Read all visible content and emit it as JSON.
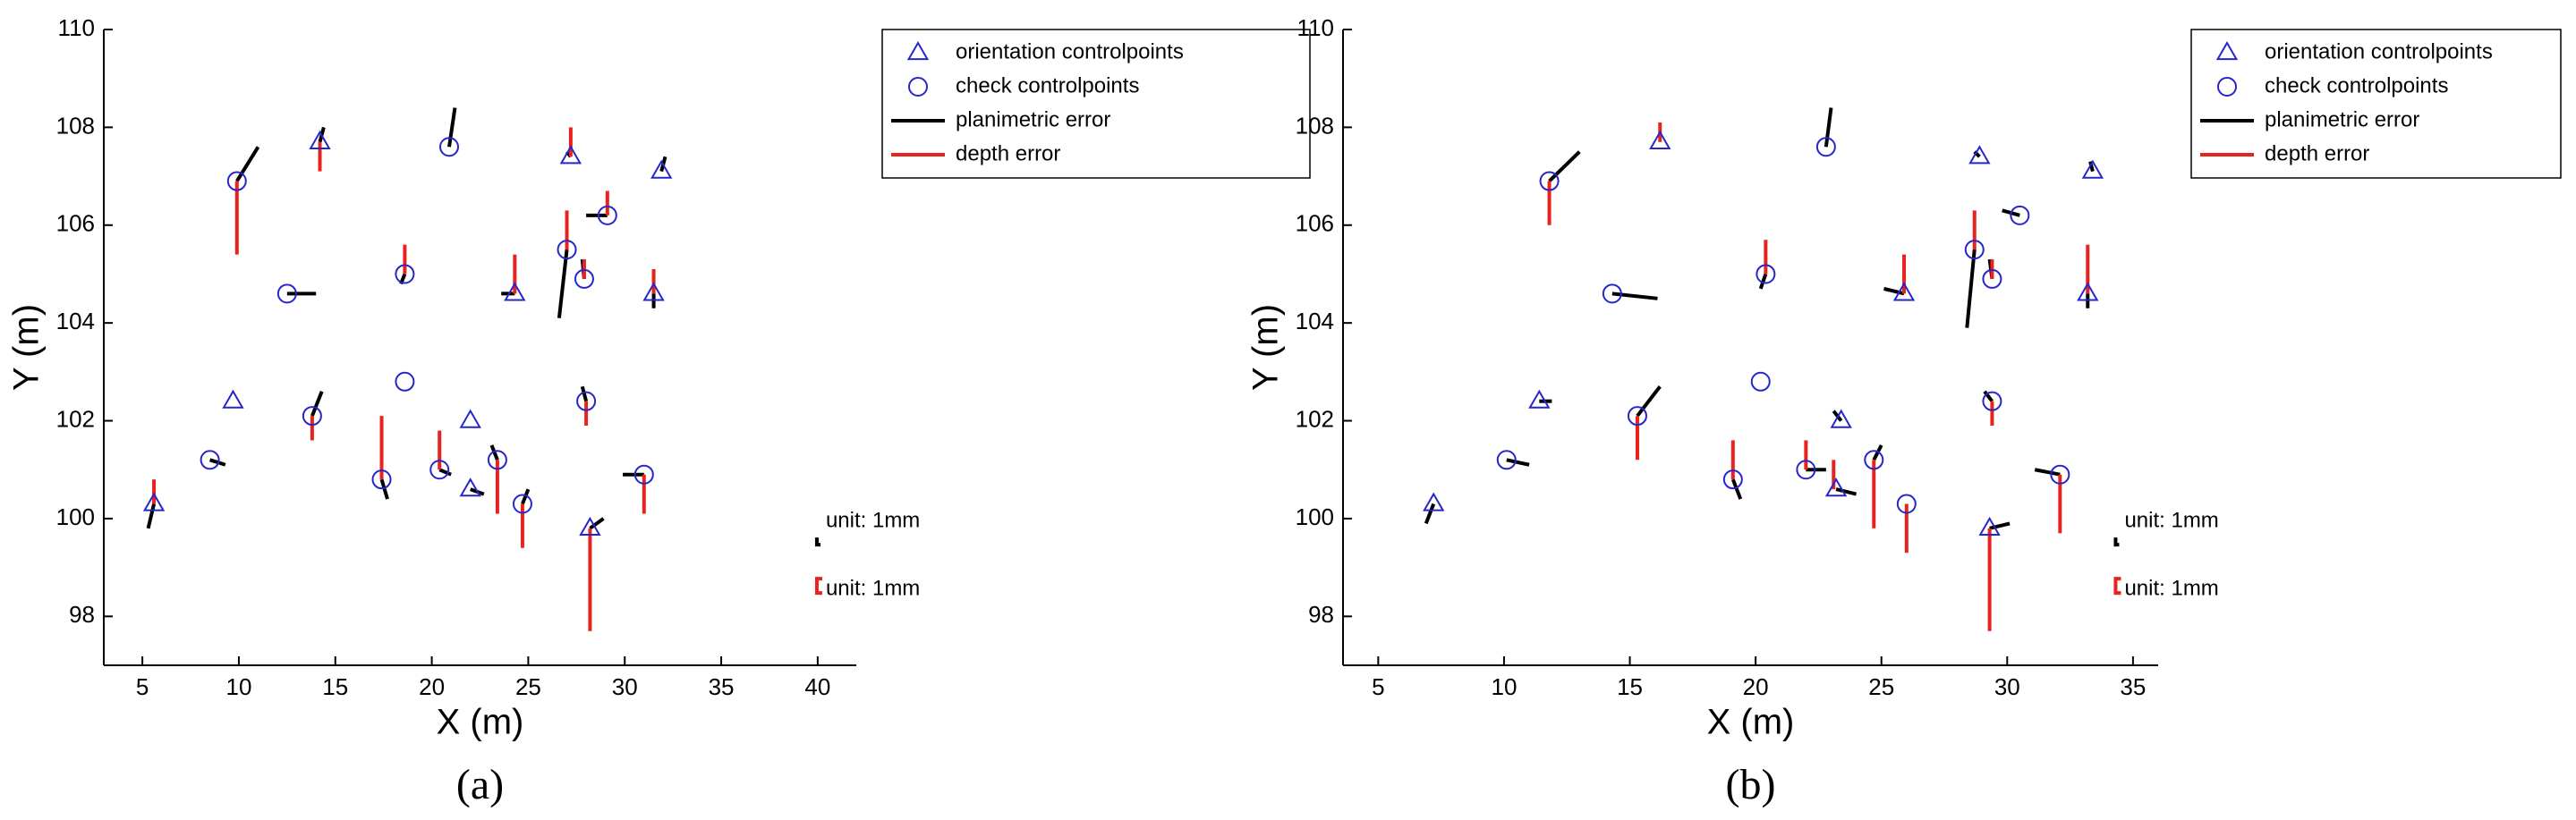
{
  "chart_data": [
    {
      "type": "scatter",
      "caption": "(a)",
      "x_label": "X (m)",
      "y_label": "Y (m)",
      "xlim": [
        3,
        42
      ],
      "ylim": [
        97,
        110
      ],
      "xticks": [
        5,
        10,
        15,
        20,
        25,
        30,
        35,
        40
      ],
      "yticks": [
        98,
        100,
        102,
        104,
        106,
        108,
        110
      ],
      "legend": "upper right",
      "annotations": [
        "unit: 1mm",
        "unit: 1mm"
      ],
      "series": [
        {
          "name": "orientation controlpoints",
          "color": "#2626c9",
          "marker": "triangle",
          "x": [
            5.6,
            9.7,
            14.2,
            27.2,
            31.9,
            24.3,
            31.5,
            22.0,
            22.0,
            28.2
          ],
          "y": [
            100.3,
            102.4,
            107.7,
            107.4,
            107.1,
            104.6,
            104.6,
            102.0,
            100.6,
            99.8
          ]
        },
        {
          "name": "check controlpoints",
          "color": "#2626c9",
          "marker": "circle",
          "x": [
            9.9,
            20.9,
            29.1,
            12.5,
            18.6,
            27.0,
            27.9,
            8.5,
            13.8,
            18.6,
            28.0,
            17.4,
            20.4,
            23.4,
            24.7,
            31.0
          ],
          "y": [
            106.9,
            107.6,
            106.2,
            104.6,
            105.0,
            105.5,
            104.9,
            101.2,
            102.1,
            102.8,
            102.4,
            100.8,
            101.0,
            101.2,
            100.3,
            100.9
          ]
        },
        {
          "name": "planimetric error",
          "color": "#000000",
          "marker": "line",
          "x": [
            5.6,
            9.9,
            14.2,
            20.9,
            12.5,
            18.6,
            27.0,
            28.0,
            24.3,
            31.5,
            27.9,
            8.5,
            13.8,
            28.0,
            17.4,
            20.4,
            22.0,
            23.4,
            24.7,
            28.2,
            31.0,
            31.9,
            27.2
          ],
          "y": [
            100.3,
            106.9,
            107.7,
            107.6,
            104.6,
            105.0,
            105.5,
            106.2,
            104.6,
            104.6,
            104.9,
            101.2,
            102.1,
            102.4,
            100.8,
            101.0,
            100.6,
            101.2,
            100.3,
            99.8,
            100.9,
            107.1,
            107.4
          ],
          "x_end": [
            5.3,
            11.0,
            14.4,
            21.2,
            14.0,
            18.4,
            26.6,
            29.1,
            23.6,
            31.5,
            27.8,
            9.3,
            14.3,
            27.8,
            17.7,
            21.0,
            22.7,
            23.1,
            25.0,
            28.9,
            29.9,
            32.1,
            27.0
          ],
          "y_end": [
            99.8,
            107.6,
            108.0,
            108.4,
            104.6,
            104.8,
            104.1,
            106.2,
            104.6,
            104.3,
            105.3,
            101.1,
            102.6,
            102.7,
            100.4,
            100.9,
            100.5,
            101.5,
            100.6,
            100.0,
            100.9,
            107.4,
            107.5
          ]
        },
        {
          "name": "depth error",
          "color": "#e8231f",
          "marker": "line",
          "x": [
            5.6,
            9.9,
            14.2,
            27.2,
            29.1,
            18.6,
            24.3,
            27.0,
            27.9,
            31.5,
            13.8,
            17.4,
            20.4,
            23.4,
            24.7,
            28.2,
            31.0,
            28.0
          ],
          "y": [
            100.3,
            106.9,
            107.7,
            107.4,
            106.2,
            105.0,
            104.6,
            105.5,
            104.9,
            104.6,
            102.1,
            100.8,
            101.0,
            101.2,
            100.3,
            99.8,
            100.9,
            102.4
          ],
          "y_end": [
            100.8,
            105.4,
            107.1,
            108.0,
            106.7,
            105.6,
            105.4,
            106.3,
            105.3,
            105.1,
            101.6,
            102.1,
            101.8,
            100.1,
            99.4,
            97.7,
            100.1,
            101.9
          ]
        }
      ]
    },
    {
      "type": "scatter",
      "caption": "(b)",
      "x_label": "X (m)",
      "y_label": "Y (m)",
      "xlim": [
        3.6,
        36
      ],
      "ylim": [
        97,
        110
      ],
      "xticks": [
        5,
        10,
        15,
        20,
        25,
        30,
        35
      ],
      "yticks": [
        98,
        100,
        102,
        104,
        106,
        108,
        110
      ],
      "legend": "upper right",
      "annotations": [
        "unit: 1mm",
        "unit: 1mm"
      ],
      "series": [
        {
          "name": "orientation controlpoints",
          "color": "#2626c9",
          "marker": "triangle",
          "x": [
            7.2,
            11.4,
            16.2,
            28.9,
            33.4,
            25.9,
            33.2,
            23.4,
            23.2,
            29.3
          ],
          "y": [
            100.3,
            102.4,
            107.7,
            107.4,
            107.1,
            104.6,
            104.6,
            102.0,
            100.6,
            99.8
          ]
        },
        {
          "name": "check controlpoints",
          "color": "#2626c9",
          "marker": "circle",
          "x": [
            11.8,
            22.8,
            30.5,
            14.3,
            20.4,
            28.7,
            29.4,
            10.1,
            15.3,
            20.2,
            29.4,
            19.1,
            22.0,
            24.7,
            26.0,
            32.1
          ],
          "y": [
            106.9,
            107.6,
            106.2,
            104.6,
            105.0,
            105.5,
            104.9,
            101.2,
            102.1,
            102.8,
            102.4,
            100.8,
            101.0,
            101.2,
            100.3,
            100.9
          ]
        },
        {
          "name": "planimetric error",
          "color": "#000000",
          "marker": "line",
          "x": [
            7.2,
            11.8,
            22.8,
            14.3,
            20.4,
            28.7,
            29.8,
            25.9,
            33.2,
            29.4,
            10.1,
            15.3,
            29.4,
            19.1,
            22.0,
            23.2,
            23.4,
            24.7,
            29.3,
            32.1,
            33.4,
            28.9,
            11.4
          ],
          "y": [
            100.3,
            106.9,
            107.6,
            104.6,
            105.0,
            105.5,
            106.3,
            104.6,
            104.6,
            104.9,
            101.2,
            102.1,
            102.4,
            100.8,
            101.0,
            100.6,
            102.0,
            101.2,
            99.8,
            100.9,
            107.1,
            107.4,
            102.4
          ],
          "x_end": [
            6.9,
            13.0,
            23.0,
            16.1,
            20.2,
            28.4,
            30.5,
            25.1,
            33.2,
            29.3,
            11.0,
            16.2,
            29.1,
            19.4,
            22.8,
            24.0,
            23.1,
            25.0,
            30.1,
            31.1,
            33.3,
            28.7,
            11.9
          ],
          "y_end": [
            99.9,
            107.5,
            108.4,
            104.5,
            104.7,
            103.9,
            106.2,
            104.7,
            104.3,
            105.3,
            101.1,
            102.7,
            102.6,
            100.4,
            101.0,
            100.5,
            102.2,
            101.5,
            99.9,
            101.0,
            107.3,
            107.5,
            102.4
          ]
        },
        {
          "name": "depth error",
          "color": "#e8231f",
          "marker": "line",
          "x": [
            11.8,
            16.2,
            20.4,
            25.9,
            28.7,
            29.4,
            33.2,
            15.3,
            19.1,
            22.0,
            23.1,
            24.7,
            26.0,
            29.3,
            32.1,
            29.4
          ],
          "y": [
            106.9,
            107.7,
            105.0,
            104.6,
            105.5,
            104.9,
            104.6,
            102.1,
            100.8,
            101.0,
            101.2,
            101.2,
            100.3,
            99.8,
            100.9,
            102.4
          ],
          "y_end": [
            106.0,
            108.1,
            105.7,
            105.4,
            106.3,
            105.3,
            105.6,
            101.2,
            101.6,
            101.6,
            100.6,
            99.8,
            99.3,
            97.7,
            99.7,
            101.9
          ]
        }
      ]
    }
  ]
}
